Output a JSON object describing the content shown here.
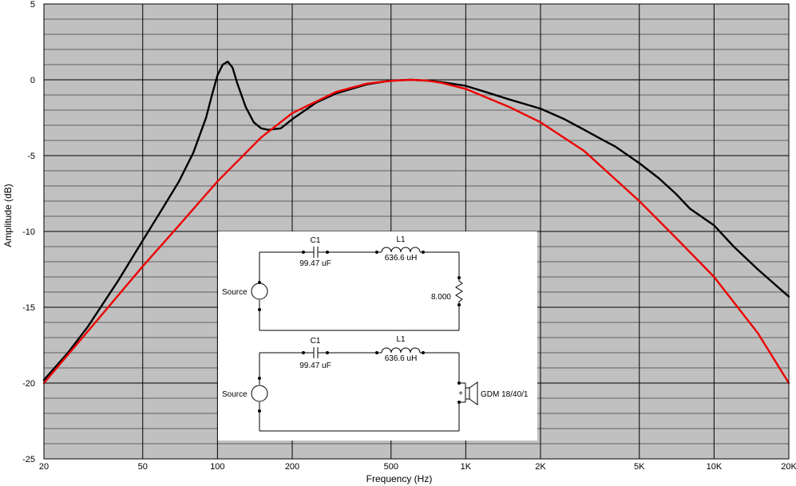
{
  "chart_data": {
    "type": "line",
    "title": "",
    "xlabel": "Frequency (Hz)",
    "ylabel": "Amplitude (dB)",
    "xscale": "log",
    "xlim": [
      20,
      20000
    ],
    "ylim": [
      -25,
      5
    ],
    "grid": true,
    "x_ticks": [
      {
        "value": 20,
        "label": "20"
      },
      {
        "value": 50,
        "label": "50"
      },
      {
        "value": 100,
        "label": "100"
      },
      {
        "value": 200,
        "label": "200"
      },
      {
        "value": 500,
        "label": "500"
      },
      {
        "value": 1000,
        "label": "1K"
      },
      {
        "value": 2000,
        "label": "2K"
      },
      {
        "value": 5000,
        "label": "5K"
      },
      {
        "value": 10000,
        "label": "10K"
      },
      {
        "value": 20000,
        "label": "20K"
      }
    ],
    "y_ticks": [
      {
        "value": 5,
        "label": "5"
      },
      {
        "value": 0,
        "label": "0"
      },
      {
        "value": -5,
        "label": "-5"
      },
      {
        "value": -10,
        "label": "-10"
      },
      {
        "value": -15,
        "label": "-15"
      },
      {
        "value": -20,
        "label": "-20"
      },
      {
        "value": -25,
        "label": "-25"
      }
    ],
    "series": [
      {
        "color": "#000000",
        "x": [
          20,
          25,
          30,
          40,
          50,
          60,
          70,
          80,
          90,
          95,
          100,
          105,
          110,
          115,
          120,
          130,
          140,
          150,
          160,
          180,
          200,
          250,
          300,
          400,
          500,
          600,
          700,
          800,
          1000,
          1200,
          1500,
          2000,
          2500,
          3000,
          3500,
          4000,
          5000,
          6000,
          7000,
          8000,
          10000,
          12000,
          15000,
          20000
        ],
        "y": [
          -19.8,
          -18.0,
          -16.3,
          -13.2,
          -10.6,
          -8.5,
          -6.7,
          -4.8,
          -2.5,
          -1.0,
          0.3,
          1.0,
          1.2,
          0.8,
          -0.2,
          -1.8,
          -2.8,
          -3.2,
          -3.3,
          -3.2,
          -2.6,
          -1.5,
          -0.9,
          -0.3,
          -0.05,
          0.0,
          -0.05,
          -0.15,
          -0.4,
          -0.8,
          -1.3,
          -1.9,
          -2.6,
          -3.3,
          -3.9,
          -4.4,
          -5.5,
          -6.5,
          -7.5,
          -8.5,
          -9.6,
          -11.0,
          -12.5,
          -14.3
        ]
      },
      {
        "color": "#ee0000",
        "x": [
          20,
          30,
          50,
          70,
          100,
          150,
          200,
          300,
          400,
          500,
          600,
          700,
          800,
          1000,
          1500,
          2000,
          3000,
          5000,
          7000,
          10000,
          15000,
          20000
        ],
        "y": [
          -20.0,
          -16.6,
          -12.3,
          -9.6,
          -6.7,
          -3.8,
          -2.2,
          -0.8,
          -0.25,
          -0.07,
          0.0,
          -0.05,
          -0.2,
          -0.6,
          -1.8,
          -2.8,
          -4.7,
          -8.0,
          -10.4,
          -13.0,
          -16.7,
          -20.0
        ]
      }
    ]
  },
  "schematics": [
    {
      "source_label": "Source",
      "c_name": "C1",
      "c_value": "99.47 uF",
      "l_name": "L1",
      "l_value": "636.6 uH",
      "load_label": "8.000"
    },
    {
      "source_label": "Source",
      "c_name": "C1",
      "c_value": "99.47 uF",
      "l_name": "L1",
      "l_value": "636.6 uH",
      "load_label": "GDM 18/40/1",
      "polarity": "+"
    }
  ]
}
